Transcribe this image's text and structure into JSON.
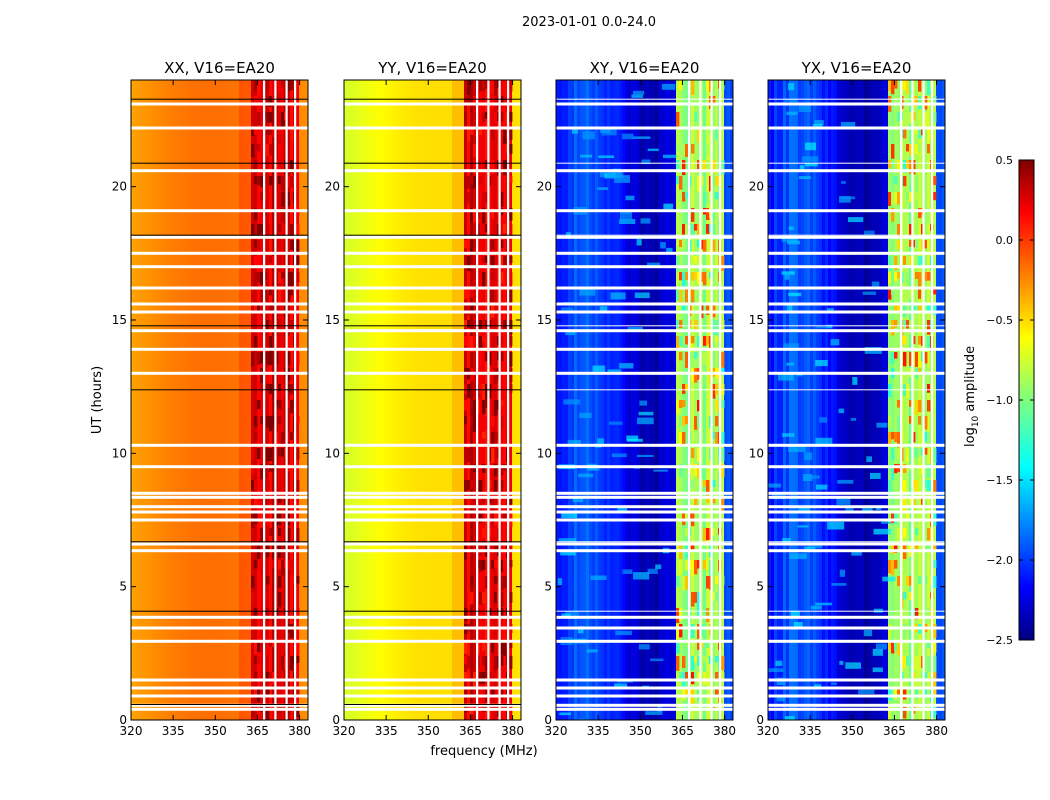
{
  "figure": {
    "suptitle": "2023-01-01 0.0-24.0",
    "xlabel": "frequency (MHz)",
    "ylabel": "UT (hours)",
    "colorbar_label": "log",
    "colorbar_label_sub": "10",
    "colorbar_label_rest": " amplitude"
  },
  "chart_data": {
    "type": "heatmap",
    "xlim": [
      320,
      383
    ],
    "ylim": [
      0,
      24
    ],
    "x_ticks": [
      320,
      335,
      350,
      365,
      380
    ],
    "x_tick_labels": [
      "320",
      "335",
      "350",
      "365",
      "380"
    ],
    "y_ticks": [
      0,
      5,
      10,
      15,
      20
    ],
    "y_tick_labels": [
      "0",
      "5",
      "10",
      "15",
      "20"
    ],
    "colorbar": {
      "range": [
        -2.5,
        0.5
      ],
      "ticks": [
        0.5,
        0.0,
        -0.5,
        -1.0,
        -1.5,
        -2.0,
        -2.5
      ],
      "tick_labels": [
        "0.5",
        "0.0",
        "−0.5",
        "−1.0",
        "−1.5",
        "−2.0",
        "−2.5"
      ],
      "colormap": "jet"
    },
    "rfi_band_MHz": [
      363,
      380
    ],
    "white_gap_hours": [
      0.4,
      0.55,
      0.9,
      1.2,
      1.5,
      2.95,
      3.45,
      3.85,
      6.35,
      6.6,
      7.5,
      7.8,
      8.0,
      8.35,
      8.5,
      9.5,
      10.3,
      13.0,
      13.9,
      14.6,
      15.3,
      15.6,
      16.2,
      17.0,
      17.5,
      18.1,
      19.1,
      20.6,
      22.2,
      23.1
    ],
    "panels": [
      {
        "title": "XX, V16=EA20",
        "base_level": -0.35,
        "band_level": 0.25,
        "type": "auto"
      },
      {
        "title": "YY, V16=EA20",
        "base_level": -0.6,
        "band_level": 0.2,
        "type": "auto"
      },
      {
        "title": "XY, V16=EA20",
        "base_level": -2.1,
        "band_level": -0.9,
        "type": "cross"
      },
      {
        "title": "YX, V16=EA20",
        "base_level": -2.1,
        "band_level": -0.9,
        "type": "cross"
      }
    ]
  }
}
